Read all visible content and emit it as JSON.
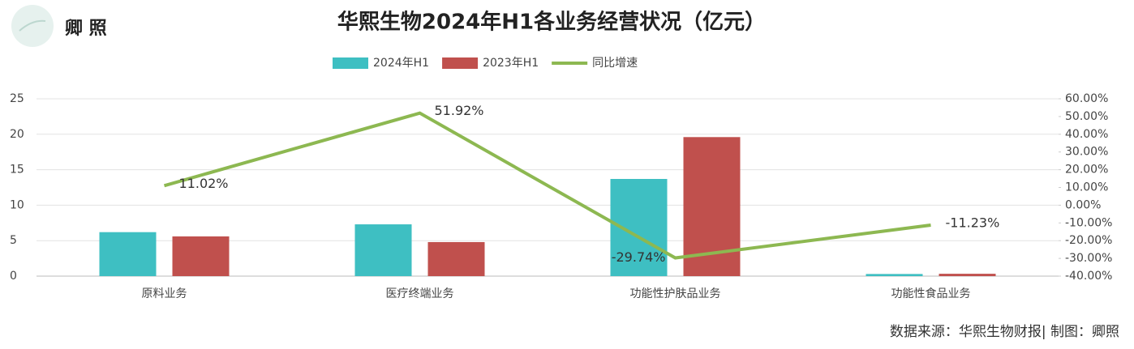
{
  "brand": "卿 照",
  "source": "数据来源：华熙生物财报| 制图：卿照",
  "chart_data": {
    "type": "bar",
    "title": "华熙生物2024年H1各业务经营状况（亿元）",
    "categories": [
      "原料业务",
      "医疗终端业务",
      "功能性护肤品业务",
      "功能性食品业务"
    ],
    "series": [
      {
        "name": "2024年H1",
        "color": "#3ebfc2",
        "values": [
          6.2,
          7.3,
          13.7,
          0.3
        ]
      },
      {
        "name": "2023年H1",
        "color": "#c0504d",
        "values": [
          5.6,
          4.8,
          19.6,
          0.33
        ]
      },
      {
        "name": "同比增速",
        "color": "#8db851",
        "type": "line",
        "axis": "y2",
        "values": [
          11.02,
          51.92,
          -29.74,
          -11.23
        ],
        "value_labels": [
          "11.02%",
          "51.92%",
          "-29.74%",
          "-11.23%"
        ]
      }
    ],
    "ylim": [
      0,
      25
    ],
    "yticks": [
      0,
      5,
      10,
      15,
      20,
      25
    ],
    "y2lim": [
      -40,
      60
    ],
    "y2ticks": [
      {
        "value": 60,
        "label": "60.00%"
      },
      {
        "value": 50,
        "label": "50.00%"
      },
      {
        "value": 40,
        "label": "40.00%"
      },
      {
        "value": 30,
        "label": "30.00%"
      },
      {
        "value": 20,
        "label": "20.00%"
      },
      {
        "value": 10,
        "label": "10.00%"
      },
      {
        "value": 0,
        "label": "0.00%"
      },
      {
        "value": -10,
        "label": "-10.00%"
      },
      {
        "value": -20,
        "label": "-20.00%"
      },
      {
        "value": -30,
        "label": "-30.00%"
      },
      {
        "value": -40,
        "label": "-40.00%"
      }
    ],
    "grid": true,
    "legend": "top"
  }
}
